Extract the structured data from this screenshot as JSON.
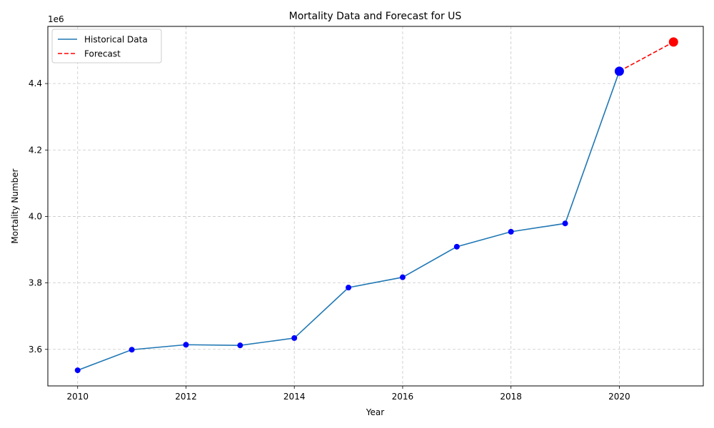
{
  "chart_data": {
    "type": "line",
    "title": "Mortality Data and Forecast for US",
    "xlabel": "Year",
    "ylabel": "Mortality Number",
    "y_offset_label": "1e6",
    "xlim": [
      2009.45,
      2021.55
    ],
    "ylim": [
      3.49,
      4.572
    ],
    "xticks": [
      2010,
      2012,
      2014,
      2016,
      2018,
      2020
    ],
    "yticks": [
      3.6,
      3.8,
      4.0,
      4.2,
      4.4
    ],
    "grid": true,
    "legend_position": "top-left",
    "series": [
      {
        "name": "Historical Data",
        "style": "solid",
        "color": "#1f77b4",
        "marker_color": "#0000ff",
        "x": [
          2010,
          2011,
          2012,
          2013,
          2014,
          2015,
          2016,
          2017,
          2018,
          2019,
          2020
        ],
        "y": [
          3.537,
          3.599,
          3.614,
          3.612,
          3.634,
          3.786,
          3.817,
          3.909,
          3.954,
          3.979,
          4.437
        ]
      },
      {
        "name": "Forecast",
        "style": "dashed",
        "color": "#ff0000",
        "marker_color": "#ff0000",
        "x": [
          2020,
          2021
        ],
        "y": [
          4.437,
          4.525
        ]
      }
    ]
  }
}
